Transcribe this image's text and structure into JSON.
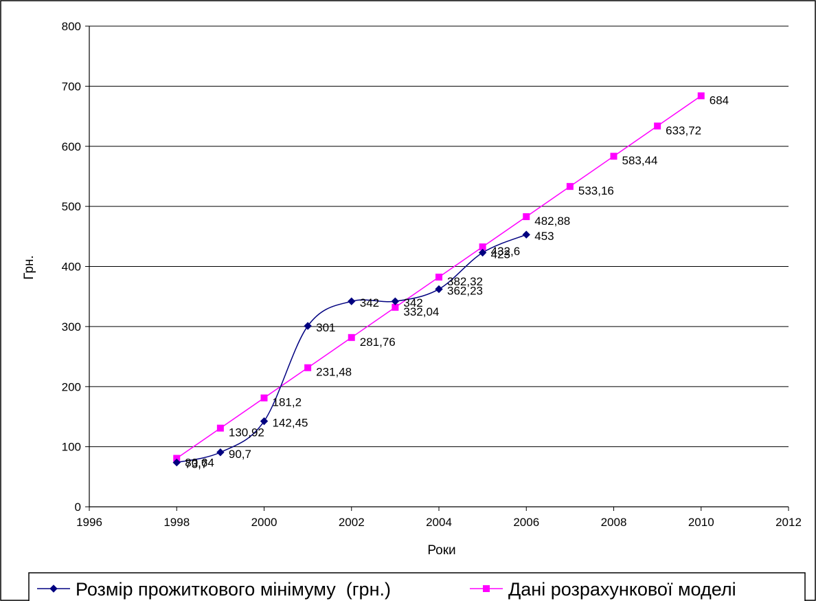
{
  "chart_data": {
    "type": "scatter",
    "title": "",
    "xlabel": "Роки",
    "ylabel": "Грн.",
    "xlim": [
      1996,
      2012
    ],
    "ylim": [
      0,
      800
    ],
    "xticks": [
      "1996",
      "1998",
      "2000",
      "2002",
      "2004",
      "2006",
      "2008",
      "2010",
      "2012"
    ],
    "yticks": [
      "0",
      "100",
      "200",
      "300",
      "400",
      "500",
      "600",
      "700",
      "800"
    ],
    "grid": "horizontal",
    "legend_position": "bottom",
    "series": [
      {
        "name": "Розмір прожиткового мінімуму  (грн.)",
        "color": "#000080",
        "marker": "diamond",
        "line": "smooth",
        "x": [
          1998,
          1999,
          2000,
          2001,
          2002,
          2003,
          2004,
          2005,
          2006
        ],
        "y": [
          73.7,
          90.7,
          142.45,
          301,
          342,
          342,
          362.23,
          423,
          453
        ],
        "labels": [
          "73,7",
          "90,7",
          "142,45",
          "301",
          "342",
          "342",
          "362,23",
          "423",
          "453"
        ]
      },
      {
        "name": "Дані розрахункової моделі",
        "color": "#ff00ff",
        "marker": "square",
        "line": "straight",
        "x": [
          1998,
          1999,
          2000,
          2001,
          2002,
          2003,
          2004,
          2005,
          2006,
          2007,
          2008,
          2009,
          2010
        ],
        "y": [
          80.64,
          130.92,
          181.2,
          231.48,
          281.76,
          332.04,
          382.32,
          432.6,
          482.88,
          533.16,
          583.44,
          633.72,
          684
        ],
        "labels": [
          "80,64",
          "130,92",
          "181,2",
          "231,48",
          "281,76",
          "332,04",
          "382,32",
          "432,6",
          "482,88",
          "533,16",
          "583,44",
          "633,72",
          "684"
        ]
      }
    ]
  }
}
